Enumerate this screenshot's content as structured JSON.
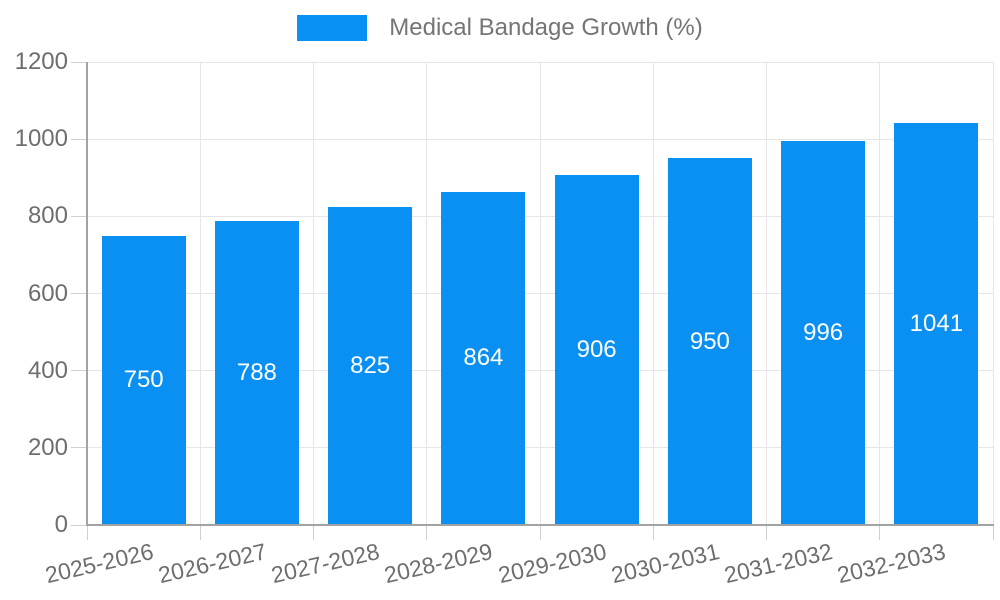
{
  "legend": {
    "label": "Medical Bandage Growth (%)"
  },
  "chart_data": {
    "type": "bar",
    "title": "Medical Bandage Growth (%)",
    "categories": [
      "2025-2026",
      "2026-2027",
      "2027-2028",
      "2028-2029",
      "2029-2030",
      "2030-2031",
      "2031-2032",
      "2032-2033"
    ],
    "values": [
      750,
      788,
      825,
      864,
      906,
      950,
      996,
      1041
    ],
    "value_labels": [
      "750",
      "788",
      "825",
      "864",
      "906",
      "950",
      "996",
      "1041"
    ],
    "xlabel": "",
    "ylabel": "",
    "ylim": [
      0,
      1200
    ],
    "yticks": [
      0,
      200,
      400,
      600,
      800,
      1000,
      1200
    ],
    "grid": true,
    "legend_position": "top-center",
    "bar_color": "#0a90f2"
  },
  "colors": {
    "background": "#ffffff",
    "bar": "#0a90f2",
    "axis_line": "#a3a3a3",
    "gridline": "#e6e6e6",
    "tick_mark": "#cfcfcf",
    "tick_text": "#6e6e6e",
    "legend_text": "#757575",
    "value_label": "#ffffff"
  }
}
